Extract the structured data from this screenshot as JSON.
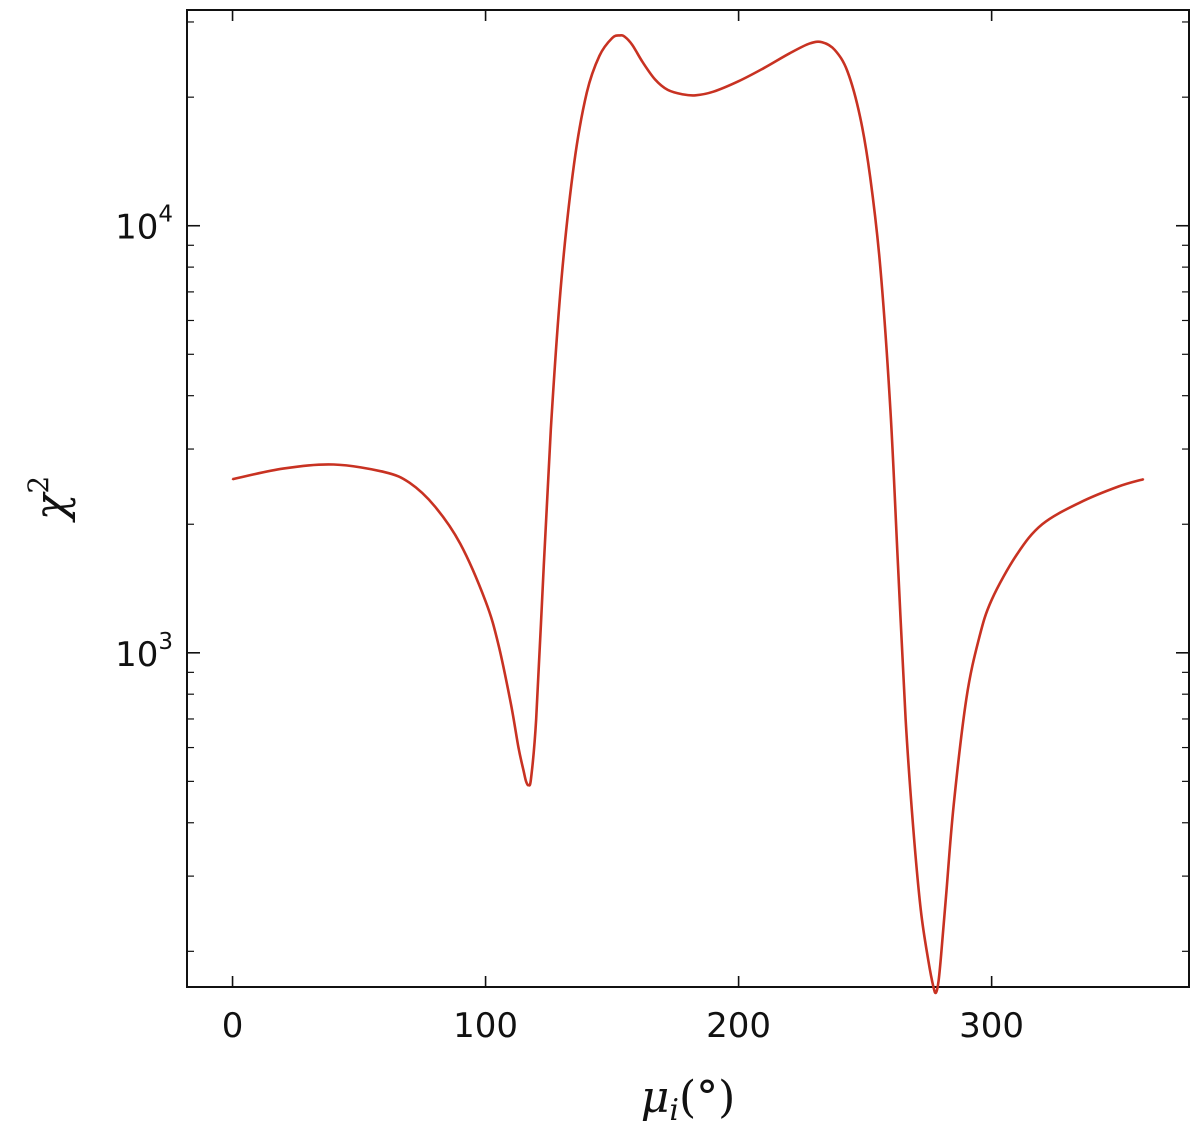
{
  "chart_data": {
    "type": "line",
    "title": "",
    "xlabel": "μ_i(°)",
    "xlabel_main": "μ",
    "xlabel_sub": "i",
    "xlabel_rest": "(°)",
    "ylabel": "χ²",
    "ylabel_main": "χ",
    "ylabel_sup": "2",
    "xlim": [
      -18,
      378
    ],
    "ylim": [
      165,
      32000
    ],
    "yscale": "log",
    "grid": false,
    "legend": "none",
    "x_ticks": [
      {
        "value": 0,
        "label": "0"
      },
      {
        "value": 100,
        "label": "100"
      },
      {
        "value": 200,
        "label": "200"
      },
      {
        "value": 300,
        "label": "300"
      }
    ],
    "y_ticks": [
      {
        "value": 1000,
        "base": "10",
        "exp": "3"
      },
      {
        "value": 10000,
        "base": "10",
        "exp": "4"
      }
    ],
    "series": [
      {
        "color": "#c83222",
        "x": [
          0,
          20,
          40,
          60,
          70,
          80,
          90,
          100,
          105,
          110,
          113,
          115,
          116,
          117,
          118,
          120,
          123,
          126,
          130,
          135,
          140,
          145,
          150,
          153,
          155,
          158,
          162,
          167,
          172,
          178,
          183,
          190,
          200,
          210,
          220,
          228,
          233,
          238,
          243,
          248,
          252,
          256,
          260,
          263,
          266,
          269,
          272,
          275,
          277,
          278,
          279,
          280,
          282,
          285,
          290,
          295,
          300,
          310,
          320,
          335,
          350,
          360
        ],
        "y": [
          2550,
          2700,
          2760,
          2650,
          2500,
          2200,
          1800,
          1320,
          1050,
          760,
          600,
          530,
          500,
          490,
          510,
          700,
          1600,
          3500,
          7500,
          14000,
          20500,
          25000,
          27500,
          27900,
          27700,
          26500,
          24200,
          22000,
          20800,
          20300,
          20200,
          20600,
          21800,
          23400,
          25300,
          26700,
          26900,
          25800,
          23000,
          18000,
          13000,
          8000,
          3700,
          1600,
          700,
          390,
          250,
          190,
          165,
          160,
          170,
          195,
          270,
          440,
          780,
          1080,
          1330,
          1700,
          2000,
          2250,
          2450,
          2550
        ]
      }
    ]
  }
}
